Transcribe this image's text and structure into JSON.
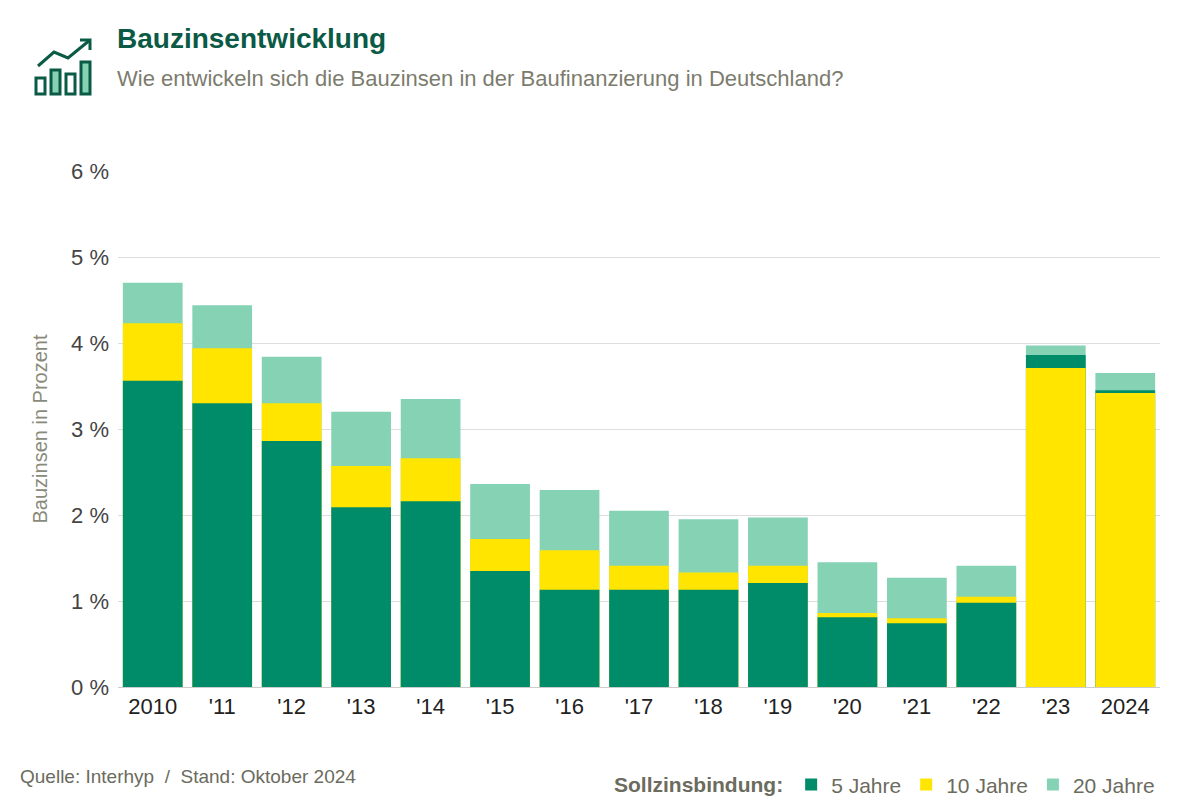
{
  "chart_data": {
    "type": "bar",
    "title": "Bauzinsentwicklung",
    "subtitle": "Wie entwickeln sich die Bauzinsen in der Baufinanzierung in Deutschland?",
    "y_label": "Bauzinsen in Prozent",
    "source": "Quelle: Interhyp  /  Stand: Oktober 2024",
    "legend_title": "Sollzinsbindung:",
    "categories": [
      "2010",
      "'11",
      "'12",
      "'13",
      "'14",
      "'15",
      "'16",
      "'17",
      "'18",
      "'19",
      "'20",
      "'21",
      "'22",
      "'23",
      "2024"
    ],
    "series": [
      {
        "name": "5 Jahre",
        "color": "#008c68",
        "values": [
          3.56,
          3.3,
          2.86,
          2.09,
          2.16,
          1.35,
          1.13,
          1.13,
          1.13,
          1.21,
          0.81,
          0.74,
          0.98,
          3.86,
          3.45
        ]
      },
      {
        "name": "10 Jahre",
        "color": "#ffe500",
        "values": [
          4.23,
          3.94,
          3.3,
          2.57,
          2.66,
          1.72,
          1.59,
          1.41,
          1.33,
          1.41,
          0.86,
          0.8,
          1.05,
          3.71,
          3.42
        ]
      },
      {
        "name": "20 Jahre",
        "color": "#86d2b4",
        "values": [
          4.7,
          4.44,
          3.84,
          3.2,
          3.35,
          2.36,
          2.29,
          2.05,
          1.95,
          1.97,
          1.45,
          1.27,
          1.41,
          3.97,
          3.65
        ]
      }
    ],
    "stacked": false,
    "ylim": [
      0,
      6
    ],
    "yticks": [
      {
        "value": 0,
        "label": "0 %"
      },
      {
        "value": 1,
        "label": "1 %"
      },
      {
        "value": 2,
        "label": "2 %"
      },
      {
        "value": 3,
        "label": "3 %"
      },
      {
        "value": 4,
        "label": "4 %"
      },
      {
        "value": 5,
        "label": "5 %"
      },
      {
        "value": 6,
        "label": "6 %"
      }
    ],
    "grid": true,
    "legend": "bottom right"
  }
}
